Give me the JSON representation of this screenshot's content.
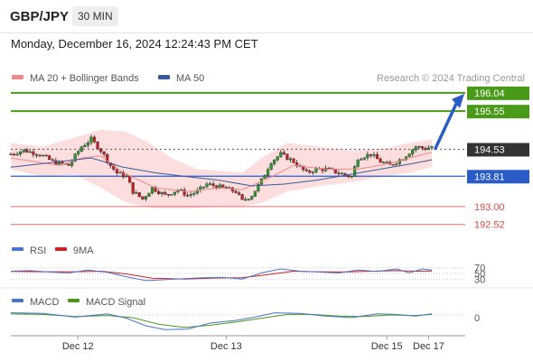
{
  "header": {
    "symbol": "GBP/JPY",
    "timeframe": "30 MIN",
    "datetime": "Monday, December 16, 2024 12:24:43 PM CET"
  },
  "chart_data": [
    {
      "type": "candlestick",
      "legend": [
        {
          "name": "MA 20 + Bollinger Bands",
          "color": "#f08a8a"
        },
        {
          "name": "MA 50",
          "color": "#3a5a9a"
        }
      ],
      "source_note": "Research © 2024 Trading Central",
      "ylim": [
        192.2,
        196.35
      ],
      "x_ticks": [
        "Dec 12",
        "Dec 13",
        "Dec 15",
        "Dec 17"
      ],
      "price_levels": [
        {
          "value": 196.04,
          "label": "196.04",
          "role": "resistance",
          "color": "#4a9a1a"
        },
        {
          "value": 195.55,
          "label": "195.55",
          "role": "resistance",
          "color": "#4a9a1a"
        },
        {
          "value": 194.53,
          "label": "194.53",
          "role": "last-price",
          "color": "#333333"
        },
        {
          "value": 193.81,
          "label": "193.81",
          "role": "pivot",
          "color": "#2a5cc8"
        },
        {
          "value": 193.0,
          "label": "193.00",
          "role": "support",
          "color": "#e04848"
        },
        {
          "value": 192.52,
          "label": "192.52",
          "role": "support",
          "color": "#e04848"
        }
      ],
      "trend_arrow": {
        "from": 194.53,
        "to": 196.04,
        "direction": "up",
        "color": "#2a5cc8"
      },
      "close_path": [
        [
          0,
          194.4
        ],
        [
          4,
          194.5
        ],
        [
          9,
          194.4
        ],
        [
          13,
          194.2
        ],
        [
          18,
          194.1
        ],
        [
          22,
          194.6
        ],
        [
          25,
          194.8
        ],
        [
          28,
          194.5
        ],
        [
          31,
          194.1
        ],
        [
          33,
          193.9
        ],
        [
          36,
          193.8
        ],
        [
          38,
          193.4
        ],
        [
          41,
          193.2
        ],
        [
          44,
          193.5
        ],
        [
          48,
          193.3
        ],
        [
          52,
          193.45
        ],
        [
          55,
          193.3
        ],
        [
          58,
          193.4
        ],
        [
          61,
          193.6
        ],
        [
          66,
          193.5
        ],
        [
          70,
          193.4
        ],
        [
          72,
          193.15
        ],
        [
          75,
          193.3
        ],
        [
          78,
          193.7
        ],
        [
          81,
          194.2
        ],
        [
          84,
          194.4
        ],
        [
          88,
          194.2
        ],
        [
          92,
          193.9
        ],
        [
          95,
          194.0
        ],
        [
          98,
          194.0
        ],
        [
          102,
          193.9
        ],
        [
          106,
          193.8
        ],
        [
          108,
          194.3
        ],
        [
          112,
          194.4
        ],
        [
          115,
          194.2
        ],
        [
          118,
          194.1
        ],
        [
          122,
          194.3
        ],
        [
          126,
          194.6
        ],
        [
          129,
          194.55
        ],
        [
          131,
          194.6
        ]
      ],
      "ma20_path": [
        [
          0,
          194.3
        ],
        [
          15,
          194.1
        ],
        [
          22,
          194.3
        ],
        [
          28,
          194.35
        ],
        [
          35,
          193.9
        ],
        [
          45,
          193.5
        ],
        [
          55,
          193.4
        ],
        [
          65,
          193.5
        ],
        [
          72,
          193.45
        ],
        [
          80,
          193.75
        ],
        [
          88,
          194.1
        ],
        [
          98,
          194.0
        ],
        [
          108,
          194.0
        ],
        [
          118,
          194.15
        ],
        [
          124,
          194.3
        ],
        [
          131,
          194.45
        ]
      ],
      "ma50_path": [
        [
          0,
          194.05
        ],
        [
          10,
          194.15
        ],
        [
          25,
          194.3
        ],
        [
          35,
          194.05
        ],
        [
          45,
          193.9
        ],
        [
          55,
          193.8
        ],
        [
          65,
          193.7
        ],
        [
          75,
          193.55
        ],
        [
          85,
          193.6
        ],
        [
          95,
          193.7
        ],
        [
          105,
          193.85
        ],
        [
          115,
          194.0
        ],
        [
          125,
          194.15
        ],
        [
          131,
          194.25
        ]
      ],
      "bb_upper": [
        [
          0,
          194.7
        ],
        [
          10,
          194.6
        ],
        [
          20,
          194.85
        ],
        [
          28,
          195.05
        ],
        [
          36,
          195.0
        ],
        [
          43,
          194.7
        ],
        [
          50,
          194.3
        ],
        [
          58,
          194.0
        ],
        [
          66,
          193.95
        ],
        [
          72,
          193.9
        ],
        [
          78,
          194.3
        ],
        [
          86,
          194.7
        ],
        [
          96,
          194.6
        ],
        [
          106,
          194.5
        ],
        [
          116,
          194.55
        ],
        [
          124,
          194.7
        ],
        [
          131,
          194.8
        ]
      ],
      "bb_lower": [
        [
          0,
          194.0
        ],
        [
          10,
          193.8
        ],
        [
          20,
          193.85
        ],
        [
          28,
          193.5
        ],
        [
          36,
          193.1
        ],
        [
          45,
          192.95
        ],
        [
          55,
          192.95
        ],
        [
          65,
          193.0
        ],
        [
          72,
          193.0
        ],
        [
          78,
          193.1
        ],
        [
          86,
          193.4
        ],
        [
          96,
          193.55
        ],
        [
          106,
          193.65
        ],
        [
          116,
          193.8
        ],
        [
          124,
          193.9
        ],
        [
          131,
          194.05
        ]
      ]
    },
    {
      "type": "line",
      "name": "RSI",
      "legend": [
        {
          "name": "RSI",
          "color": "#4a72d0"
        },
        {
          "name": "9MA",
          "color": "#d02020"
        }
      ],
      "y_ticks": [
        "70",
        "50",
        "30"
      ],
      "ylim": [
        15,
        85
      ],
      "rsi": [
        [
          0,
          58
        ],
        [
          6,
          60
        ],
        [
          12,
          55
        ],
        [
          18,
          52
        ],
        [
          24,
          62
        ],
        [
          30,
          54
        ],
        [
          36,
          38
        ],
        [
          42,
          25
        ],
        [
          48,
          28
        ],
        [
          54,
          32
        ],
        [
          60,
          35
        ],
        [
          66,
          36
        ],
        [
          72,
          30
        ],
        [
          78,
          52
        ],
        [
          84,
          66
        ],
        [
          90,
          58
        ],
        [
          96,
          55
        ],
        [
          102,
          52
        ],
        [
          108,
          62
        ],
        [
          114,
          57
        ],
        [
          120,
          66
        ],
        [
          124,
          52
        ],
        [
          128,
          66
        ],
        [
          131,
          62
        ]
      ],
      "rsi_ma": [
        [
          0,
          57
        ],
        [
          10,
          56
        ],
        [
          20,
          56
        ],
        [
          28,
          58
        ],
        [
          36,
          48
        ],
        [
          44,
          33
        ],
        [
          54,
          30
        ],
        [
          64,
          34
        ],
        [
          72,
          35
        ],
        [
          80,
          46
        ],
        [
          88,
          58
        ],
        [
          96,
          56
        ],
        [
          104,
          55
        ],
        [
          112,
          58
        ],
        [
          120,
          60
        ],
        [
          126,
          58
        ],
        [
          131,
          59
        ]
      ]
    },
    {
      "type": "line",
      "name": "MACD",
      "legend": [
        {
          "name": "MACD",
          "color": "#4a72d0"
        },
        {
          "name": "MACD Signal",
          "color": "#4a9a1a"
        }
      ],
      "y_ticks": [
        "0"
      ],
      "ylim": [
        -0.35,
        0.15
      ],
      "macd": [
        [
          0,
          0.04
        ],
        [
          10,
          0.03
        ],
        [
          20,
          -0.04
        ],
        [
          30,
          0.02
        ],
        [
          36,
          -0.06
        ],
        [
          42,
          -0.2
        ],
        [
          48,
          -0.27
        ],
        [
          55,
          -0.26
        ],
        [
          62,
          -0.15
        ],
        [
          70,
          -0.1
        ],
        [
          76,
          -0.04
        ],
        [
          82,
          0.04
        ],
        [
          90,
          0.03
        ],
        [
          98,
          -0.02
        ],
        [
          106,
          -0.05
        ],
        [
          114,
          0.02
        ],
        [
          120,
          0.01
        ],
        [
          126,
          -0.02
        ],
        [
          131,
          0.02
        ]
      ],
      "signal": [
        [
          0,
          0.02
        ],
        [
          10,
          0.01
        ],
        [
          20,
          -0.03
        ],
        [
          30,
          -0.01
        ],
        [
          38,
          -0.05
        ],
        [
          46,
          -0.17
        ],
        [
          54,
          -0.23
        ],
        [
          62,
          -0.19
        ],
        [
          70,
          -0.13
        ],
        [
          78,
          -0.06
        ],
        [
          86,
          0.01
        ],
        [
          94,
          0.01
        ],
        [
          102,
          -0.02
        ],
        [
          110,
          -0.03
        ],
        [
          118,
          0.0
        ],
        [
          126,
          -0.01
        ],
        [
          131,
          0.01
        ]
      ]
    }
  ]
}
